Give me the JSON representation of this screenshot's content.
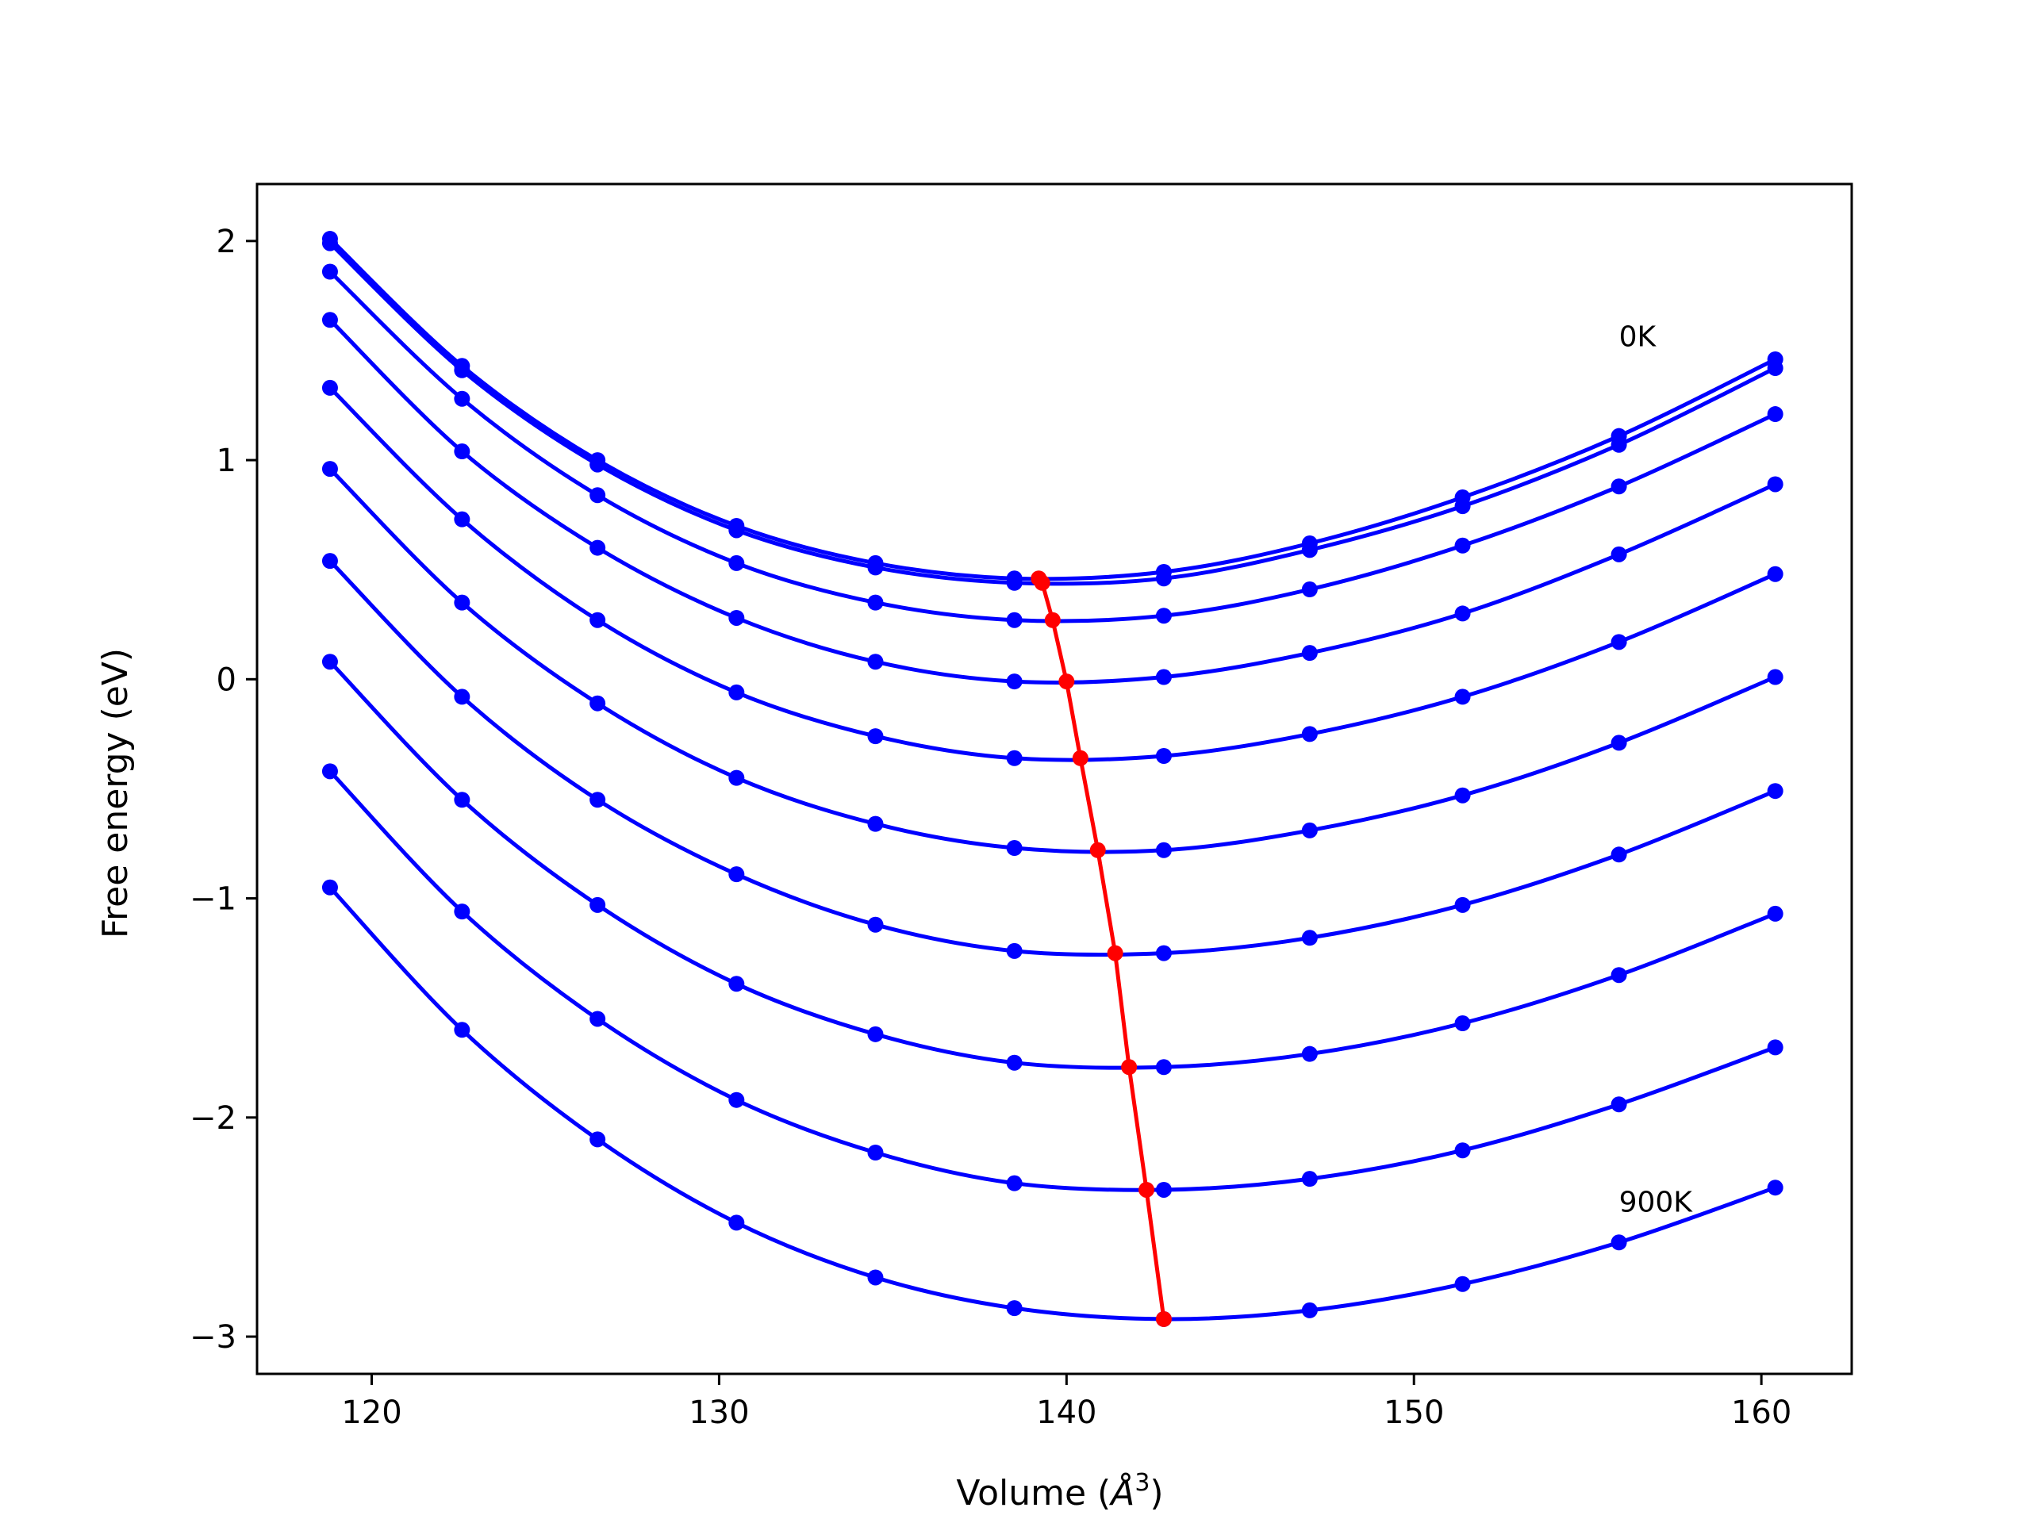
{
  "chart_data": {
    "type": "line",
    "xlabel": "Volume (",
    "xlabel_unit": "Å",
    "xlabel_sup": "3",
    "xlabel_close": ")",
    "ylabel": "Free energy (eV)",
    "xlim": [
      116.7,
      162.6
    ],
    "ylim": [
      -3.17,
      2.26
    ],
    "xticks": [
      120,
      130,
      140,
      150,
      160
    ],
    "yticks": [
      2,
      1,
      0,
      -1,
      -2,
      -3
    ],
    "xtick_labels": [
      "120",
      "130",
      "140",
      "150",
      "160"
    ],
    "ytick_labels": [
      "2",
      "1",
      "0",
      "−1",
      "−2",
      "−3"
    ],
    "grid": false,
    "annotations": [
      {
        "text": "0K",
        "x": 155.9,
        "y": 1.52
      },
      {
        "text": "900K",
        "x": 155.9,
        "y": -2.43
      }
    ],
    "x": [
      118.8,
      122.6,
      126.5,
      130.5,
      134.5,
      138.5,
      142.8,
      147.0,
      151.4,
      155.9,
      160.4
    ],
    "colors": {
      "curves": "#0000ff",
      "minimum_path": "#ff0000"
    },
    "series": [
      {
        "values": [
          2.01,
          1.43,
          1.0,
          0.7,
          0.53,
          0.46,
          0.49,
          0.62,
          0.83,
          1.11,
          1.46
        ]
      },
      {
        "values": [
          1.99,
          1.41,
          0.98,
          0.68,
          0.51,
          0.44,
          0.46,
          0.59,
          0.79,
          1.07,
          1.42
        ]
      },
      {
        "values": [
          1.86,
          1.28,
          0.84,
          0.53,
          0.35,
          0.27,
          0.29,
          0.41,
          0.61,
          0.88,
          1.21
        ]
      },
      {
        "values": [
          1.64,
          1.04,
          0.6,
          0.28,
          0.08,
          -0.01,
          0.01,
          0.12,
          0.3,
          0.57,
          0.89
        ]
      },
      {
        "values": [
          1.33,
          0.73,
          0.27,
          -0.06,
          -0.26,
          -0.36,
          -0.35,
          -0.25,
          -0.08,
          0.17,
          0.48
        ]
      },
      {
        "values": [
          0.96,
          0.35,
          -0.11,
          -0.45,
          -0.66,
          -0.77,
          -0.78,
          -0.69,
          -0.53,
          -0.29,
          0.01
        ]
      },
      {
        "values": [
          0.54,
          -0.08,
          -0.55,
          -0.89,
          -1.12,
          -1.24,
          -1.25,
          -1.18,
          -1.03,
          -0.8,
          -0.51
        ]
      },
      {
        "values": [
          0.08,
          -0.55,
          -1.03,
          -1.39,
          -1.62,
          -1.75,
          -1.77,
          -1.71,
          -1.57,
          -1.35,
          -1.07
        ]
      },
      {
        "values": [
          -0.42,
          -1.06,
          -1.55,
          -1.92,
          -2.16,
          -2.3,
          -2.33,
          -2.28,
          -2.15,
          -1.94,
          -1.68
        ]
      },
      {
        "values": [
          -0.95,
          -1.6,
          -2.1,
          -2.48,
          -2.73,
          -2.87,
          -2.92,
          -2.88,
          -2.76,
          -2.57,
          -2.32
        ]
      }
    ],
    "minimum_path": {
      "x": [
        139.2,
        139.3,
        139.6,
        140.0,
        140.4,
        140.9,
        141.4,
        141.8,
        142.3,
        142.8
      ],
      "values": [
        0.46,
        0.44,
        0.27,
        -0.01,
        -0.36,
        -0.78,
        -1.25,
        -1.77,
        -2.33,
        -2.92
      ]
    }
  }
}
